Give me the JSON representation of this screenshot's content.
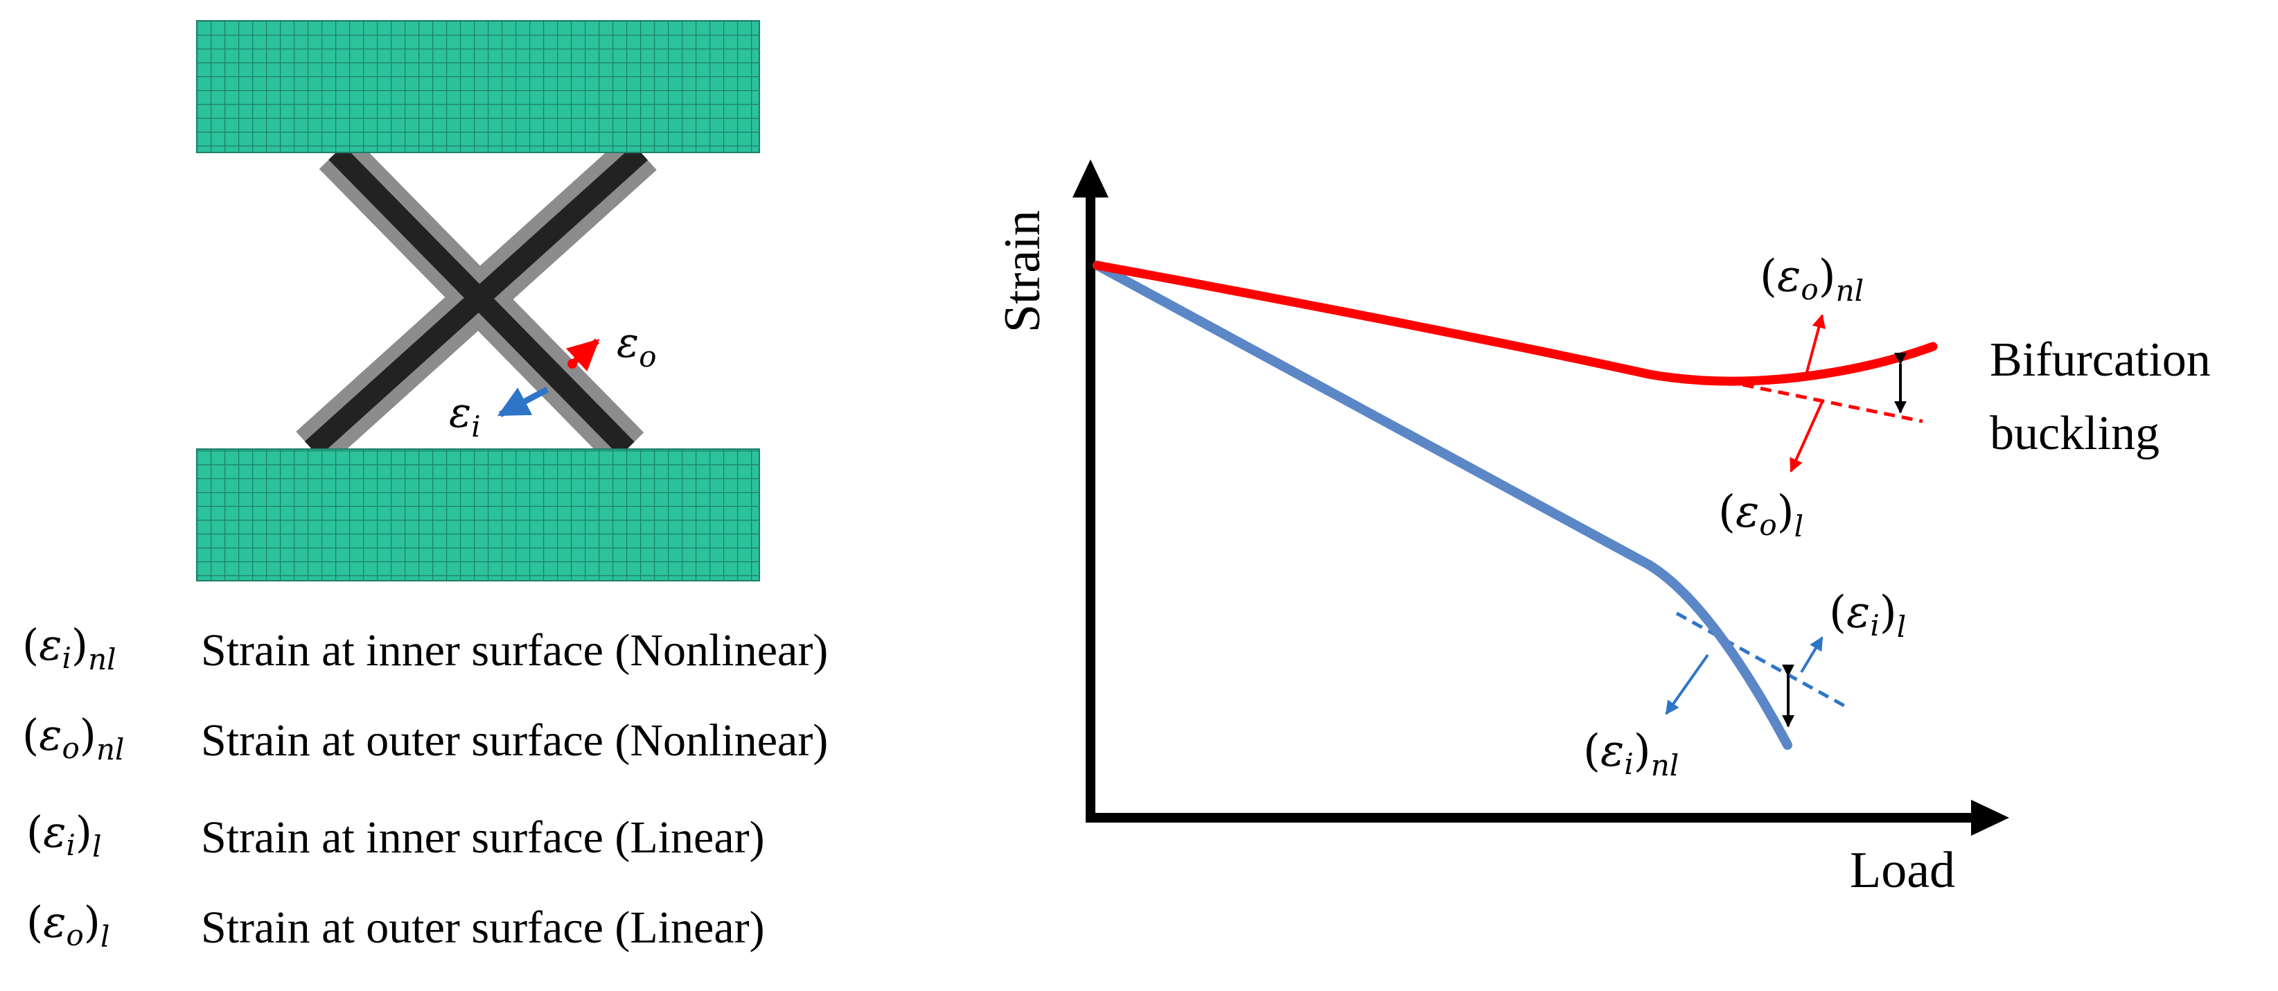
{
  "colors": {
    "mesh_fill": "#2bc29c",
    "mesh_line": "#1d7f68",
    "member_dark": "#222222",
    "member_light": "#8c8c8c",
    "outer_strain": "#ff0000",
    "inner_strain": "#2e75c8",
    "inner_curve": "#5b87c7"
  },
  "model": {
    "eps_o_symbol": "ε",
    "eps_o_sub": "o",
    "eps_i_symbol": "ε",
    "eps_i_sub": "i"
  },
  "legend": {
    "items": [
      {
        "symbol": "ε",
        "sub_inner": "i",
        "sub_outer": "nl",
        "text": "Strain at inner surface (Nonlinear)"
      },
      {
        "symbol": "ε",
        "sub_inner": "o",
        "sub_outer": "nl",
        "text": "Strain at outer surface (Nonlinear)"
      },
      {
        "symbol": "ε",
        "sub_inner": "i",
        "sub_outer": "l",
        "text": "Strain at inner surface (Linear)"
      },
      {
        "symbol": "ε",
        "sub_inner": "o",
        "sub_outer": "l",
        "text": "Strain at outer surface (Linear)"
      }
    ]
  },
  "chart": {
    "ylabel": "Strain",
    "xlabel": "Load",
    "annotation_line1": "Bifurcation",
    "annotation_line2": "buckling",
    "labels": {
      "eps_o_nl": {
        "symbol": "ε",
        "sub_inner": "o",
        "sub_outer": "nl"
      },
      "eps_o_l": {
        "symbol": "ε",
        "sub_inner": "o",
        "sub_outer": "l"
      },
      "eps_i_l": {
        "symbol": "ε",
        "sub_inner": "i",
        "sub_outer": "l"
      },
      "eps_i_nl": {
        "symbol": "ε",
        "sub_inner": "i",
        "sub_outer": "nl"
      }
    }
  }
}
